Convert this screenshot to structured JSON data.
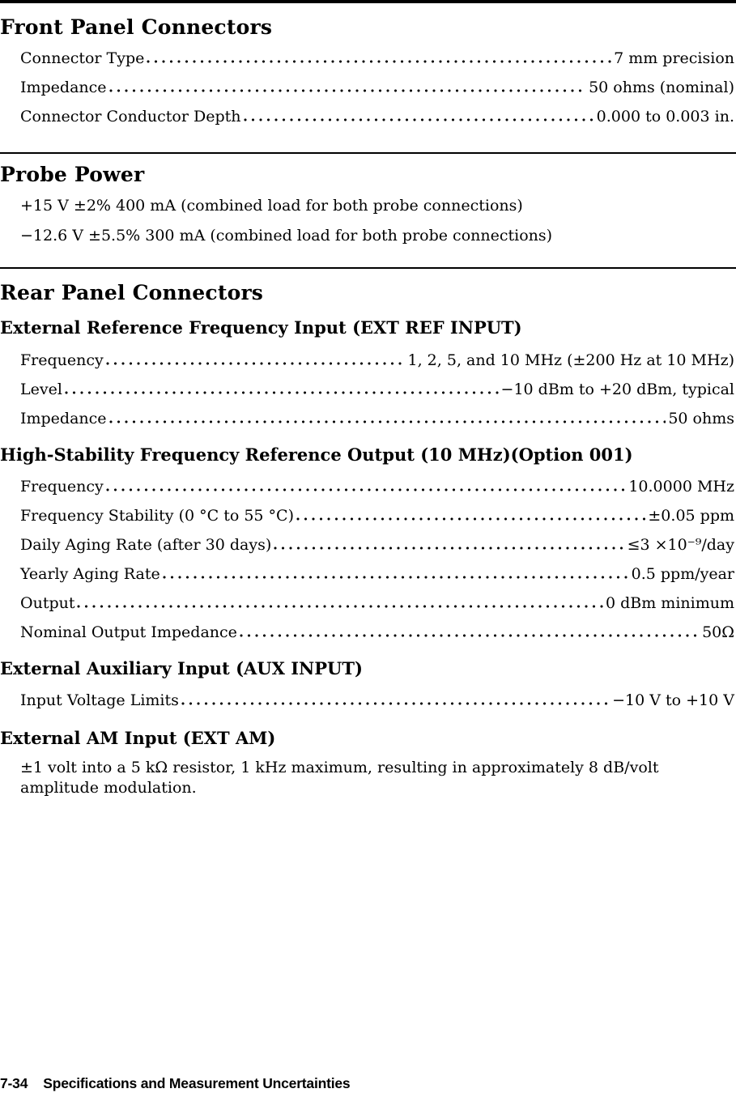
{
  "document": {
    "sections": {
      "front_panel": {
        "title": "Front Panel Connectors",
        "rows": [
          {
            "label": "Connector Type",
            "value": "7 mm precision"
          },
          {
            "label": "Impedance",
            "value": "50 ohms (nominal)"
          },
          {
            "label": "Connector Conductor Depth",
            "value": "0.000 to 0.003 in."
          }
        ]
      },
      "probe_power": {
        "title": "Probe Power",
        "lines": [
          "+15 V ±2% 400 mA (combined load for both probe connections)",
          "−12.6 V ±5.5% 300 mA (combined load for both probe connections)"
        ]
      },
      "rear_panel": {
        "title": "Rear Panel Connectors",
        "subsections": [
          {
            "title": "External Reference Frequency Input (EXT REF INPUT)",
            "rows": [
              {
                "label": "Frequency",
                "value": "1, 2, 5, and 10 MHz (±200 Hz at 10 MHz)"
              },
              {
                "label": "Level",
                "value": "−10 dBm to +20 dBm, typical"
              },
              {
                "label": "Impedance",
                "value": "50 ohms"
              }
            ]
          },
          {
            "title": "High-Stability Frequency Reference Output (10 MHz)(Option 001)",
            "rows": [
              {
                "label": "Frequency",
                "value": "10.0000 MHz"
              },
              {
                "label": "Frequency Stability (0 °C to 55 °C)",
                "value": "±0.05 ppm"
              },
              {
                "label": "Daily Aging Rate (after 30 days)",
                "value": "≤3 ×10⁻⁹/day"
              },
              {
                "label": "Yearly Aging Rate",
                "value": "0.5 ppm/year"
              },
              {
                "label": "Output",
                "value": "0 dBm minimum"
              },
              {
                "label": "Nominal Output Impedance",
                "value": "50Ω"
              }
            ]
          },
          {
            "title": "External Auxiliary Input (AUX INPUT)",
            "rows": [
              {
                "label": "Input Voltage Limits",
                "value": "−10 V to +10 V"
              }
            ]
          },
          {
            "title": "External AM Input (EXT AM)",
            "paragraph": "±1 volt into a 5 kΩ resistor, 1 kHz maximum, resulting in approximately 8 dB/volt amplitude modulation."
          }
        ]
      }
    },
    "footer": {
      "page_number": "7-34",
      "title": "Specifications and Measurement Uncertainties"
    }
  }
}
